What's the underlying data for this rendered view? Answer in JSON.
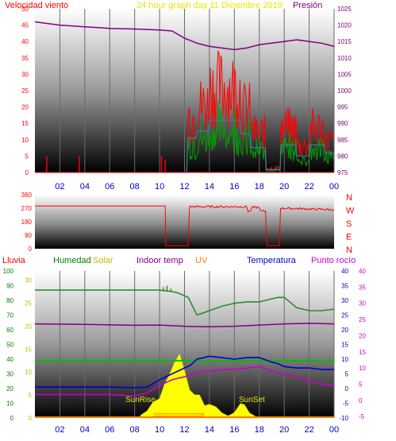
{
  "chart_data": [
    {
      "type": "line",
      "title": "24 hour graph day  11 Diciembre 2019",
      "series": [
        {
          "name": "Velocidad viento",
          "color": "#ff0000"
        },
        {
          "name": "Presión",
          "color": "#800080"
        }
      ],
      "y_left_ticks": [
        "0",
        "5",
        "10",
        "15",
        "20",
        "25",
        "30",
        "35",
        "40",
        "45",
        "50"
      ],
      "y_right_ticks": [
        "975",
        "980",
        "985",
        "990",
        "995",
        "1000",
        "1005",
        "1010",
        "1015",
        "1020",
        "1025"
      ],
      "ylim_left": [
        0,
        50
      ],
      "ylim_right": [
        975,
        1025
      ],
      "x_ticks": [
        "02",
        "04",
        "06",
        "08",
        "10",
        "12",
        "14",
        "16",
        "18",
        "20",
        "22",
        "00"
      ],
      "pressure_hours": [
        0,
        2,
        4,
        6,
        8,
        10,
        11,
        12,
        13,
        14,
        15,
        16,
        17,
        18,
        19,
        20,
        21,
        22,
        23,
        24
      ],
      "pressure_values": [
        1021,
        1020,
        1019.5,
        1019,
        1018.8,
        1018.5,
        1018.2,
        1016,
        1014.5,
        1013.5,
        1013,
        1012.5,
        1013,
        1014,
        1014.5,
        1015,
        1015.5,
        1015,
        1014.5,
        1013.5
      ]
    },
    {
      "type": "line",
      "title": "",
      "y_left_ticks": [
        "0",
        "90",
        "180",
        "270",
        "360"
      ],
      "ylim": [
        0,
        360
      ],
      "direction_labels": [
        "N",
        "W",
        "S",
        "E",
        "N"
      ],
      "hours": [
        0,
        10.45,
        10.5,
        12.3,
        12.4,
        17,
        17.1,
        17.3,
        17.4,
        18,
        18.1,
        18.5,
        18.6,
        19.6,
        19.7,
        24
      ],
      "values": [
        285,
        285,
        20,
        20,
        280,
        280,
        250,
        250,
        275,
        275,
        250,
        250,
        20,
        20,
        270,
        260
      ]
    },
    {
      "type": "line",
      "labels": {
        "rain": "Lluvia",
        "humidity": "Humedad",
        "solar": "Solar",
        "indoor": "Indoor temp",
        "uv": "UV",
        "temperature": "Temperatura",
        "dewpoint": "Punto rocío"
      },
      "colors": {
        "rain": "#ff0000",
        "humidity": "#008000",
        "solar": "#e0e000",
        "indoor": "#800080",
        "uv": "#ff8000",
        "temperature": "#0000cc",
        "dewpoint": "#cc00cc"
      },
      "humidity_ticks": [
        "0",
        "10",
        "20",
        "30",
        "40",
        "50",
        "60",
        "70",
        "80",
        "90",
        "100"
      ],
      "solar_ticks": [
        "0",
        "5",
        "10",
        "15",
        "20",
        "25",
        "30"
      ],
      "temp_ticks_left": [
        "-10",
        "-5",
        "0",
        "5",
        "10",
        "15",
        "20",
        "25",
        "30",
        "35",
        "40"
      ],
      "temp_ticks_right": [
        "-5",
        "0",
        "5",
        "10",
        "15",
        "20",
        "25",
        "30",
        "35",
        "40"
      ],
      "sunrise_label": "SunRise",
      "sunset_label": "SunSet",
      "x_ticks": [
        "02",
        "04",
        "06",
        "08",
        "10",
        "12",
        "14",
        "16",
        "18",
        "20",
        "22",
        "00"
      ],
      "humidity_hours": [
        0,
        10,
        11,
        11.5,
        12.3,
        13,
        14,
        15,
        16,
        17,
        18,
        18.5,
        19.5,
        20,
        21,
        22,
        23,
        24
      ],
      "humidity_values": [
        87,
        87,
        86,
        85,
        82,
        70,
        73,
        76,
        78,
        79,
        79,
        80,
        82,
        82,
        75,
        73,
        73,
        74
      ],
      "indoor_hours": [
        0,
        4,
        8,
        10,
        12,
        14,
        16,
        18,
        20,
        22,
        24
      ],
      "indoor_values": [
        22,
        21.8,
        21.5,
        21.6,
        21.2,
        21,
        21.2,
        21.6,
        22,
        22.2,
        22
      ],
      "greenline_hours": [
        0,
        24
      ],
      "greenline_values": [
        9.5,
        9.5
      ],
      "temp_hours": [
        0,
        6,
        8,
        9,
        10,
        11,
        12,
        12.5,
        13,
        14,
        15,
        16,
        17,
        18,
        19,
        19.5,
        20,
        21,
        22,
        23,
        24
      ],
      "temp_values": [
        0.5,
        0.5,
        0.3,
        0.5,
        3,
        5,
        7,
        8,
        10,
        11,
        10.5,
        10,
        10.5,
        10.5,
        9,
        8.5,
        7.5,
        7,
        7,
        6.5,
        6.5
      ],
      "dew_hours": [
        0,
        6,
        8,
        9,
        10,
        11,
        12,
        13,
        14,
        15,
        16,
        17,
        18,
        19,
        20,
        21,
        22,
        23,
        24
      ],
      "dew_values": [
        -2,
        -2,
        -2.5,
        -1.5,
        1,
        3,
        4,
        5.5,
        6,
        6.5,
        6.5,
        7,
        7.5,
        6,
        5,
        4,
        2.5,
        1.5,
        1
      ],
      "solar_hours": [
        8.5,
        9,
        9.5,
        10,
        10.4,
        10.8,
        11.2,
        11.6,
        12,
        12.4,
        12.8,
        13.2,
        13.6,
        14,
        14.5,
        15,
        15.5,
        16,
        16.5,
        16.8,
        17.2,
        17.6,
        18
      ],
      "solar_values": [
        0.5,
        1.5,
        3,
        4,
        6,
        8,
        10,
        12,
        9,
        7,
        5,
        4,
        3.5,
        3,
        2,
        1,
        0.5,
        1.5,
        3,
        2.5,
        1,
        0.5,
        0
      ]
    }
  ]
}
